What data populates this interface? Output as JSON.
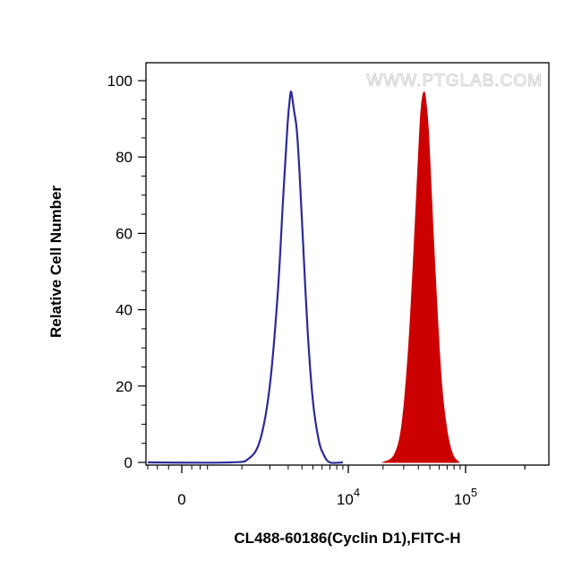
{
  "chart_data": {
    "type": "area",
    "title": "",
    "xlabel": "CL488-60186(Cyclin D1),FITC-H",
    "ylabel": "Relative Cell Number",
    "x_scale": "biexponential",
    "x_tick_labels": [
      {
        "base": "0",
        "exp": ""
      },
      {
        "base": "10",
        "exp": "4"
      },
      {
        "base": "10",
        "exp": "5"
      }
    ],
    "yticks": [
      0,
      20,
      40,
      60,
      80,
      100
    ],
    "ylim": [
      0,
      100
    ],
    "grid": false,
    "watermark": "WWW.PTGLAB.COM",
    "series": [
      {
        "style": "outline",
        "color": "#2a2a9a",
        "points": [
          [
            -300,
            0
          ],
          [
            700,
            0
          ],
          [
            1200,
            1
          ],
          [
            1600,
            6
          ],
          [
            2000,
            20
          ],
          [
            2400,
            45
          ],
          [
            2700,
            70
          ],
          [
            2950,
            88
          ],
          [
            3100,
            95
          ],
          [
            3200,
            97
          ],
          [
            3400,
            92
          ],
          [
            3600,
            87
          ],
          [
            3800,
            76
          ],
          [
            4100,
            57
          ],
          [
            4500,
            34
          ],
          [
            5000,
            16
          ],
          [
            5600,
            6
          ],
          [
            6200,
            2
          ],
          [
            7000,
            0
          ],
          [
            9000,
            0
          ]
        ]
      },
      {
        "style": "filled",
        "color": "#cc0000",
        "points": [
          [
            20000,
            0
          ],
          [
            25000,
            2
          ],
          [
            29000,
            10
          ],
          [
            33000,
            30
          ],
          [
            37000,
            58
          ],
          [
            40000,
            80
          ],
          [
            42000,
            92
          ],
          [
            44500,
            97
          ],
          [
            46500,
            94
          ],
          [
            49000,
            85
          ],
          [
            53000,
            62
          ],
          [
            58000,
            38
          ],
          [
            63000,
            20
          ],
          [
            70000,
            8
          ],
          [
            78000,
            2
          ],
          [
            88000,
            0
          ]
        ]
      }
    ]
  }
}
